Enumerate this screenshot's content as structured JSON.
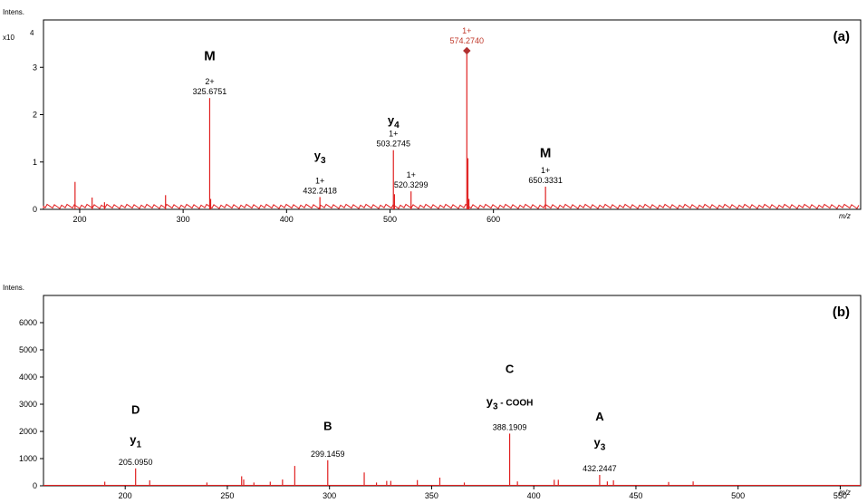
{
  "chart_data": [
    {
      "panel": "(a)",
      "type": "bar",
      "ylabel": "Intens.",
      "yscale_label": "x10",
      "yscale_exp": "4",
      "xlabel": "m/z",
      "xlim": [
        165,
        955
      ],
      "ylim": [
        0,
        4.0
      ],
      "xticks": [
        200,
        300,
        400,
        500,
        600
      ],
      "yticks": [
        0,
        1,
        2,
        3
      ],
      "color": "#e02020",
      "peaks": [
        {
          "x": 195.5,
          "y": 0.58
        },
        {
          "x": 212,
          "y": 0.25
        },
        {
          "x": 224,
          "y": 0.15
        },
        {
          "x": 283,
          "y": 0.3
        },
        {
          "x": 325.6751,
          "y": 2.35,
          "mz": "325.6751",
          "charge": "2+"
        },
        {
          "x": 326.6,
          "y": 0.22
        },
        {
          "x": 432.2418,
          "y": 0.26,
          "mz": "432.2418",
          "charge": "1+"
        },
        {
          "x": 503.2745,
          "y": 1.25,
          "mz": "503.2745",
          "charge": "1+"
        },
        {
          "x": 504.3,
          "y": 0.32
        },
        {
          "x": 520.3299,
          "y": 0.38,
          "mz": "520.3299",
          "charge": "1+"
        },
        {
          "x": 574.274,
          "y": 3.35,
          "mz": "574.2740",
          "charge": "1+",
          "highlight": true
        },
        {
          "x": 575.3,
          "y": 1.08
        },
        {
          "x": 576.3,
          "y": 0.22
        },
        {
          "x": 650.3331,
          "y": 0.48,
          "mz": "650.3331",
          "charge": "1+"
        }
      ],
      "annotations": [
        {
          "text": "M",
          "x": 325.6751,
          "y": 3.15,
          "sub": ""
        },
        {
          "text": "y",
          "x": 432.2418,
          "y": 1.05,
          "sub": "3"
        },
        {
          "text": "y",
          "x": 503.2745,
          "y": 1.8,
          "sub": "4"
        },
        {
          "text": "M",
          "x": 650.3331,
          "y": 1.1,
          "sub": ""
        }
      ]
    },
    {
      "panel": "(b)",
      "type": "bar",
      "ylabel": "Intens.",
      "xlabel": "m/z",
      "xlim": [
        160,
        560
      ],
      "ylim": [
        0,
        7000
      ],
      "xticks": [
        200,
        250,
        300,
        350,
        400,
        450,
        500,
        550
      ],
      "yticks": [
        0,
        1000,
        2000,
        3000,
        4000,
        5000,
        6000
      ],
      "color": "#e02020",
      "peaks": [
        {
          "x": 190,
          "y": 150
        },
        {
          "x": 205.095,
          "y": 640,
          "mz": "205.0950"
        },
        {
          "x": 212,
          "y": 200
        },
        {
          "x": 240,
          "y": 120
        },
        {
          "x": 257,
          "y": 350
        },
        {
          "x": 258,
          "y": 230
        },
        {
          "x": 263,
          "y": 120
        },
        {
          "x": 271,
          "y": 150
        },
        {
          "x": 277,
          "y": 230
        },
        {
          "x": 283,
          "y": 730
        },
        {
          "x": 299.1459,
          "y": 940,
          "mz": "299.1459"
        },
        {
          "x": 317,
          "y": 490
        },
        {
          "x": 323,
          "y": 120
        },
        {
          "x": 328,
          "y": 180
        },
        {
          "x": 330,
          "y": 180
        },
        {
          "x": 343,
          "y": 210
        },
        {
          "x": 354,
          "y": 300
        },
        {
          "x": 366,
          "y": 120
        },
        {
          "x": 388.1909,
          "y": 1920,
          "mz": "388.1909"
        },
        {
          "x": 392,
          "y": 160
        },
        {
          "x": 410,
          "y": 220
        },
        {
          "x": 412,
          "y": 220
        },
        {
          "x": 432.2447,
          "y": 400,
          "mz": "432.2447"
        },
        {
          "x": 436,
          "y": 160
        },
        {
          "x": 439,
          "y": 200
        },
        {
          "x": 466,
          "y": 140
        },
        {
          "x": 478,
          "y": 160
        }
      ],
      "annotations": [
        {
          "text": "D",
          "x": 205.095,
          "y": 2650,
          "sub": ""
        },
        {
          "text": "y",
          "x": 205.095,
          "y": 1550,
          "sub": "1"
        },
        {
          "text": "B",
          "x": 299.1459,
          "y": 2050,
          "sub": ""
        },
        {
          "text": "C",
          "x": 388.1909,
          "y": 4150,
          "sub": ""
        },
        {
          "text": "y",
          "x": 388.1909,
          "y": 2950,
          "sub": "3",
          "suffix": " - COOH"
        },
        {
          "text": "A",
          "x": 432.2447,
          "y": 2400,
          "sub": ""
        },
        {
          "text": "y",
          "x": 432.2447,
          "y": 1450,
          "sub": "3"
        }
      ]
    }
  ]
}
